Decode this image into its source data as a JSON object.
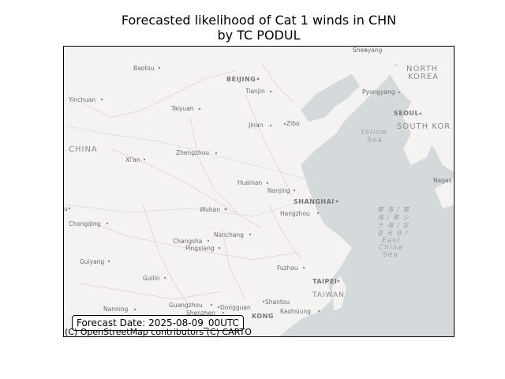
{
  "title": {
    "line1": "Forecasted likelihood of Cat 1 winds in CHN",
    "line2": "by TC PODUL"
  },
  "forecast_label": "Forecast Date: 2025-08-09_00UTC",
  "attribution": "(C) OpenStreetMap contributors (C) CARTO",
  "colors": {
    "sea": "#d4dadc",
    "land": "#f4f3f1",
    "border": "#d9c9c9"
  },
  "map_labels": {
    "countries": {
      "china": "CHINA",
      "north_korea_1": "NORTH",
      "north_korea_2": "KOREA",
      "south_korea": "SOUTH KOR"
    },
    "seas": {
      "yellow_1": "Yellow",
      "yellow_2": "Sea",
      "east_1": "東 海 / 東",
      "east_2": "海 / 東 シ",
      "east_3": "ナ 海 / 동",
      "east_4": "중 국 해 /",
      "east_5": "East",
      "east_6": "China",
      "east_7": "Sea"
    },
    "cities": {
      "shenyang": "Shenyang",
      "baotou": "Baotou",
      "beijing": "BEIJING",
      "tianjin": "Tianjin",
      "yinchuan": "Yinchuan",
      "taiyuan": "Taiyuan",
      "pyongyang": "Pyongyang",
      "seoul": "SEOUL",
      "jinan": "Jinan",
      "zibo": "Zibo",
      "zhengzhou": "Zhengzhou",
      "xian": "Xi'an",
      "huainan": "Huainan",
      "nanjing": "Nanjing",
      "shanghai": "SHANGHAI",
      "nagasaki": "Nagas",
      "wuhan": "Wuhan",
      "hangzhou": "Hangzhou",
      "chongqing": "Chongqing",
      "changsha": "Changsha",
      "nanchang": "Nanchang",
      "pingxiang": "Pingxiang",
      "guiyang": "Guiyang",
      "fuzhou": "Fuzhou",
      "taipei": "TAIPEI",
      "taiwan": "TAIWAN",
      "guilin": "Guilin",
      "shantou": "Shantou",
      "guangzhou": "Guangzhou",
      "dongguan": "Dongguan",
      "shenzhen": "Shenzhen",
      "kaohsiung": "Kaohsiung",
      "nanning": "Nanning",
      "hongkong": "KONG",
      "edge_u": "u"
    }
  }
}
